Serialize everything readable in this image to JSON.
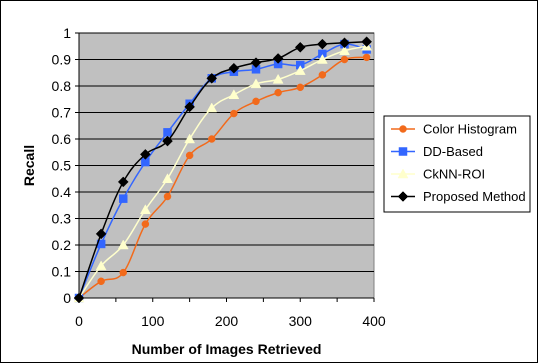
{
  "chart_data": {
    "type": "line",
    "title": "",
    "xlabel": "Number of Images Retrieved",
    "ylabel": "Recall",
    "xlim": [
      0,
      400
    ],
    "ylim": [
      0,
      1
    ],
    "x_ticks": [
      "0",
      "100",
      "200",
      "300",
      "400"
    ],
    "y_ticks": [
      "0",
      "0.1",
      "0.2",
      "0.3",
      "0.4",
      "0.5",
      "0.6",
      "0.7",
      "0.8",
      "0.9",
      "1"
    ],
    "grid": "horizontal",
    "plot_background": "#c0c0c0",
    "legend_position": "right",
    "x": [
      0,
      30,
      60,
      90,
      120,
      150,
      180,
      210,
      240,
      270,
      300,
      330,
      360,
      390
    ],
    "series": [
      {
        "name": "Color Histogram",
        "color": "#f26a1b",
        "marker": "circle",
        "values": [
          0.0,
          0.063,
          0.096,
          0.279,
          0.383,
          0.538,
          0.6,
          0.696,
          0.742,
          0.775,
          0.795,
          0.842,
          0.9,
          0.908
        ]
      },
      {
        "name": "DD-Based",
        "color": "#3366ff",
        "marker": "square",
        "values": [
          0.0,
          0.204,
          0.375,
          0.513,
          0.625,
          0.733,
          0.829,
          0.854,
          0.863,
          0.883,
          0.879,
          0.921,
          0.958,
          0.938
        ]
      },
      {
        "name": "CkNN-ROI",
        "color": "#ffffcc",
        "marker": "triangle",
        "values": [
          0.0,
          0.121,
          0.2,
          0.333,
          0.45,
          0.6,
          0.717,
          0.767,
          0.808,
          0.825,
          0.858,
          0.9,
          0.933,
          0.95
        ]
      },
      {
        "name": "Proposed Method",
        "color": "#000000",
        "marker": "diamond",
        "values": [
          0.0,
          0.242,
          0.438,
          0.542,
          0.592,
          0.721,
          0.829,
          0.867,
          0.888,
          0.904,
          0.946,
          0.958,
          0.963,
          0.967
        ]
      }
    ]
  }
}
